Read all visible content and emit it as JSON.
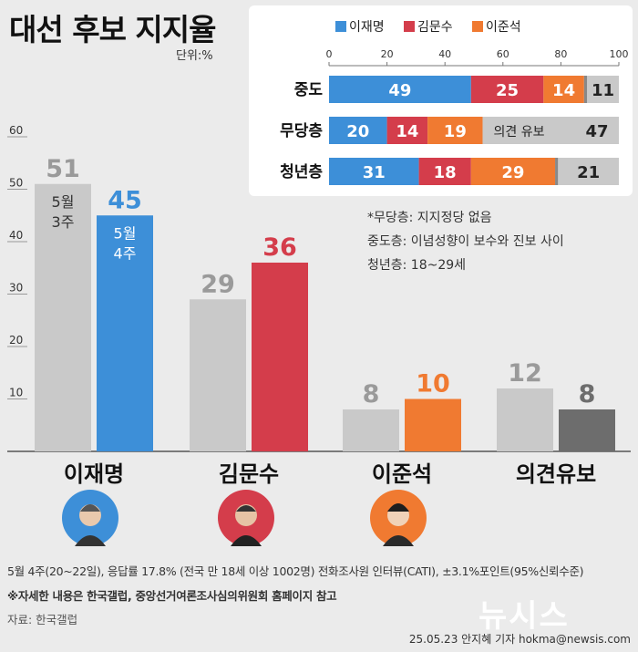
{
  "header": {
    "title": "대선 후보 지지율",
    "unit": "단위:%"
  },
  "chart_data": [
    {
      "type": "bar",
      "categories": [
        "이재명",
        "김문수",
        "이준석",
        "의견유보"
      ],
      "series": [
        {
          "name": "5월 3주",
          "values": [
            51,
            29,
            8,
            12
          ]
        },
        {
          "name": "5월 4주",
          "values": [
            45,
            36,
            10,
            8
          ]
        }
      ],
      "period_labels": [
        [
          "5월",
          "3주"
        ],
        [
          "5월",
          "4주"
        ]
      ],
      "yticks": [
        10,
        20,
        30,
        40,
        50,
        60
      ],
      "ylim": [
        0,
        60
      ],
      "colors": {
        "prev": "#c9c9c9",
        "이재명": "#3d8fd8",
        "김문수": "#d43d4b",
        "이준석": "#f07a31",
        "의견유보": "#6d6d6d"
      }
    },
    {
      "type": "bar",
      "stacked": true,
      "orientation": "horizontal",
      "legend": [
        "이재명",
        "김문수",
        "이준석"
      ],
      "legend_colors": [
        "#3d8fd8",
        "#d43d4b",
        "#f07a31"
      ],
      "xticks": [
        0,
        20,
        40,
        60,
        80,
        100
      ],
      "xlim": [
        0,
        100
      ],
      "rows": [
        {
          "label": "중도",
          "segments": [
            49,
            25,
            14,
            11
          ],
          "text": [
            "49",
            "25",
            "14",
            "11"
          ],
          "residual": 1
        },
        {
          "label": "무당층",
          "segments": [
            20,
            14,
            19,
            47
          ],
          "text": [
            "20",
            "14",
            "19",
            "47"
          ],
          "residual": 0,
          "last_prefix": "의견 유보"
        },
        {
          "label": "청년층",
          "segments": [
            31,
            18,
            29,
            21
          ],
          "text": [
            "31",
            "18",
            "29",
            "21"
          ],
          "residual": 1
        }
      ],
      "segment_colors": [
        "#3d8fd8",
        "#d43d4b",
        "#f07a31",
        "#c9c9c9"
      ]
    }
  ],
  "notes": [
    "*무당층: 지지정당 없음",
    "중도층: 이념성향이 보수와 진보 사이",
    "청년층: 18~29세"
  ],
  "footer": {
    "survey": "5월 4주(20~22일), 응답률 17.8% (전국 만 18세 이상 1002명) 전화조사원 인터뷰(CATI), ±3.1%포인트(95%신뢰수준)",
    "reference": "※자세한 내용은 한국갤럽, 중앙선거여론조사심의위원회 홈페이지 참고",
    "source": "자료: 한국갤럽",
    "credit": "25.05.23 안지혜 기자 hokma@newsis.com",
    "logo": "뉴시스"
  }
}
